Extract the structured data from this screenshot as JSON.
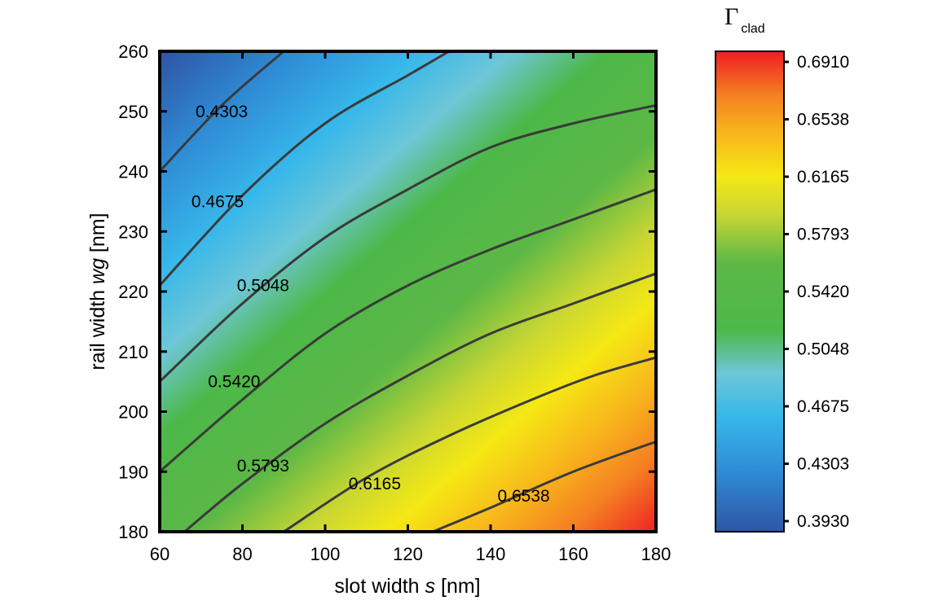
{
  "chart_data": {
    "type": "heatmap",
    "subtype": "filled-contour",
    "title": "",
    "xlabel": {
      "prefix": "slot width ",
      "var": "s",
      "suffix": " [nm]"
    },
    "ylabel": {
      "prefix": "rail width ",
      "var": "wg",
      "suffix": " [nm]"
    },
    "xlim": [
      60,
      180
    ],
    "ylim": [
      180,
      260
    ],
    "x_ticks": [
      60,
      80,
      100,
      120,
      140,
      160,
      180
    ],
    "y_ticks": [
      180,
      190,
      200,
      210,
      220,
      230,
      240,
      250,
      260
    ],
    "grid": false,
    "colorbar": {
      "title_main": "Γ",
      "title_sub": "clad",
      "placement": "right",
      "range": [
        0.393,
        0.691
      ],
      "tick_values": [
        "0.3930",
        "0.4303",
        "0.4675",
        "0.5048",
        "0.5420",
        "0.5793",
        "0.6165",
        "0.6538",
        "0.6910"
      ],
      "colormap": [
        "#2f55a6",
        "#2f8ed6",
        "#37b7ea",
        "#6ec7d7",
        "#4cb848",
        "#5db846",
        "#c8d633",
        "#f5e814",
        "#f8b51c",
        "#f57f22",
        "#ee1d23"
      ]
    },
    "contours": [
      {
        "level": "0.4303",
        "points": [
          [
            60,
            240
          ],
          [
            75,
            251
          ],
          [
            90,
            260
          ]
        ],
        "label_at": [
          75,
          250
        ]
      },
      {
        "level": "0.4675",
        "points": [
          [
            60,
            221
          ],
          [
            80,
            236
          ],
          [
            100,
            248
          ],
          [
            120,
            256
          ],
          [
            130,
            260
          ]
        ],
        "label_at": [
          74,
          235
        ]
      },
      {
        "level": "0.5048",
        "points": [
          [
            60,
            205
          ],
          [
            80,
            218
          ],
          [
            100,
            229
          ],
          [
            120,
            237
          ],
          [
            140,
            244
          ],
          [
            160,
            248
          ],
          [
            180,
            251
          ]
        ],
        "label_at": [
          85,
          221
        ]
      },
      {
        "level": "0.5420",
        "points": [
          [
            60,
            190
          ],
          [
            80,
            202
          ],
          [
            100,
            213
          ],
          [
            120,
            221
          ],
          [
            140,
            227
          ],
          [
            160,
            232
          ],
          [
            180,
            237
          ]
        ],
        "label_at": [
          78,
          205
        ]
      },
      {
        "level": "0.5793",
        "points": [
          [
            66,
            180
          ],
          [
            80,
            188
          ],
          [
            100,
            198
          ],
          [
            120,
            206
          ],
          [
            140,
            213
          ],
          [
            160,
            218
          ],
          [
            180,
            223
          ]
        ],
        "label_at": [
          85,
          191
        ]
      },
      {
        "level": "0.6165",
        "points": [
          [
            90,
            180
          ],
          [
            110,
            189
          ],
          [
            130,
            196
          ],
          [
            150,
            202
          ],
          [
            165,
            206
          ],
          [
            180,
            209
          ]
        ],
        "label_at": [
          112,
          188
        ]
      },
      {
        "level": "0.6538",
        "points": [
          [
            126,
            180
          ],
          [
            140,
            184
          ],
          [
            160,
            190
          ],
          [
            180,
            195
          ]
        ],
        "label_at": [
          148,
          186
        ]
      }
    ]
  }
}
